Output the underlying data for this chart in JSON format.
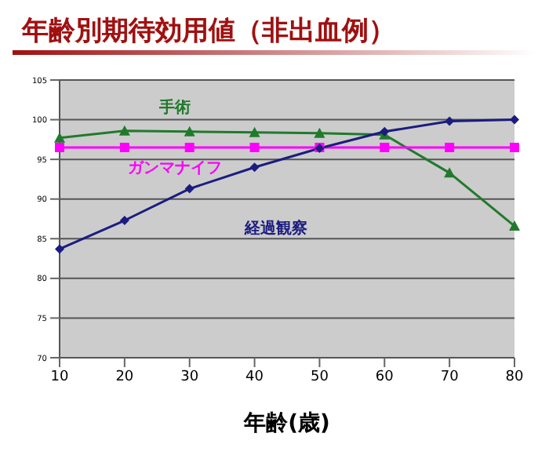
{
  "chart_data": {
    "type": "line",
    "title": "年齢別期待効用値（非出血例）",
    "xlabel": "年齢(歳)",
    "categories": [
      "10",
      "20",
      "30",
      "40",
      "50",
      "60",
      "70",
      "80"
    ],
    "series": [
      {
        "name": "手術",
        "color": "#217a2c",
        "marker": "triangle",
        "values": [
          97.7,
          98.6,
          98.5,
          98.4,
          98.3,
          98.1,
          93.3,
          86.6
        ]
      },
      {
        "name": "ガンマナイフ",
        "color": "#ff00ff",
        "marker": "square",
        "values": [
          96.5,
          96.5,
          96.5,
          96.5,
          96.5,
          96.5,
          96.5,
          96.5
        ]
      },
      {
        "name": "経過観察",
        "color": "#1c1c80",
        "marker": "diamond",
        "values": [
          83.7,
          87.3,
          91.3,
          94.0,
          96.4,
          98.5,
          99.8,
          100.0
        ]
      }
    ],
    "ylim": [
      70,
      105
    ],
    "yticks": [
      70,
      75,
      80,
      85,
      90,
      95,
      100,
      105
    ],
    "grid": "y"
  }
}
